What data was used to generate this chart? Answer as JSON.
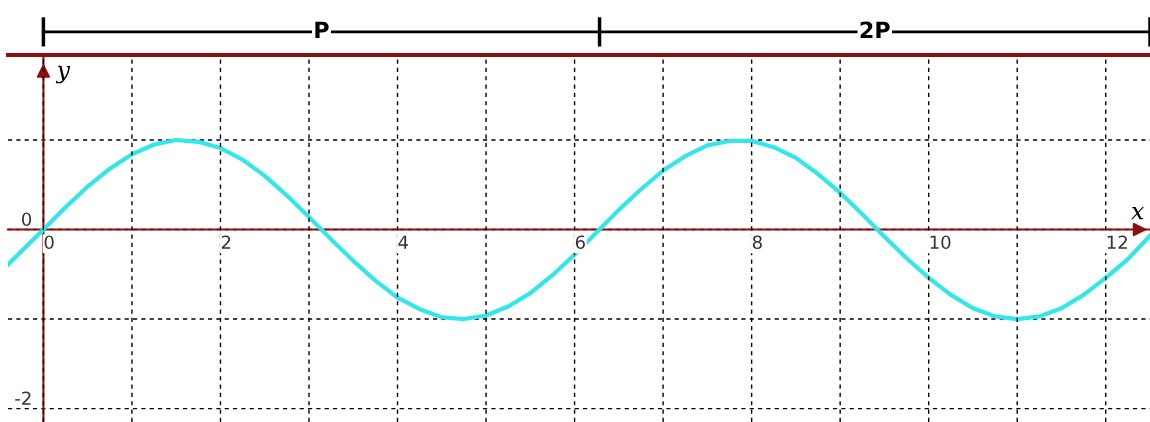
{
  "chart_data": {
    "type": "line",
    "xlabel": "x",
    "ylabel": "y",
    "x": [
      -0.4,
      0,
      0.25,
      0.5,
      0.75,
      1,
      1.25,
      1.5,
      1.75,
      2,
      2.25,
      2.5,
      2.75,
      3,
      3.25,
      3.5,
      3.75,
      4,
      4.25,
      4.5,
      4.75,
      5,
      5.25,
      5.5,
      5.75,
      6,
      6.25,
      6.5,
      6.75,
      7,
      7.25,
      7.5,
      7.75,
      8,
      8.25,
      8.5,
      8.75,
      9,
      9.25,
      9.5,
      9.75,
      10,
      10.25,
      10.5,
      10.75,
      11,
      11.25,
      11.5,
      11.75,
      12,
      12.25,
      12.5
    ],
    "series": [
      {
        "color": "#33e6ea",
        "values": [
          -0.39,
          0,
          0.25,
          0.48,
          0.68,
          0.84,
          0.95,
          1.0,
          0.98,
          0.91,
          0.78,
          0.6,
          0.38,
          0.14,
          -0.11,
          -0.35,
          -0.57,
          -0.76,
          -0.89,
          -0.98,
          -1.0,
          -0.96,
          -0.86,
          -0.71,
          -0.51,
          -0.28,
          -0.03,
          0.22,
          0.45,
          0.66,
          0.82,
          0.94,
          0.99,
          0.99,
          0.92,
          0.8,
          0.62,
          0.41,
          0.17,
          -0.08,
          -0.32,
          -0.54,
          -0.73,
          -0.88,
          -0.97,
          -1.0,
          -0.97,
          -0.88,
          -0.73,
          -0.54,
          -0.33,
          -0.07
        ]
      }
    ],
    "xlim": [
      -0.4,
      12.5
    ],
    "ylim": [
      -2.15,
      1.95
    ],
    "xticks": [
      0,
      {
        "value": 1,
        "label": null
      },
      2,
      {
        "value": 3,
        "label": null
      },
      4,
      {
        "value": 5,
        "label": null
      },
      6,
      {
        "value": 7,
        "label": null
      },
      8,
      {
        "value": 9,
        "label": null
      },
      10,
      {
        "value": 11,
        "label": null
      },
      12
    ],
    "yticks": [
      -2,
      {
        "value": -1,
        "label": null
      },
      0,
      {
        "value": 1,
        "label": null
      }
    ],
    "annotations": [
      "P",
      "2P"
    ],
    "grid": true,
    "line_style": "solid",
    "marker": "none"
  }
}
